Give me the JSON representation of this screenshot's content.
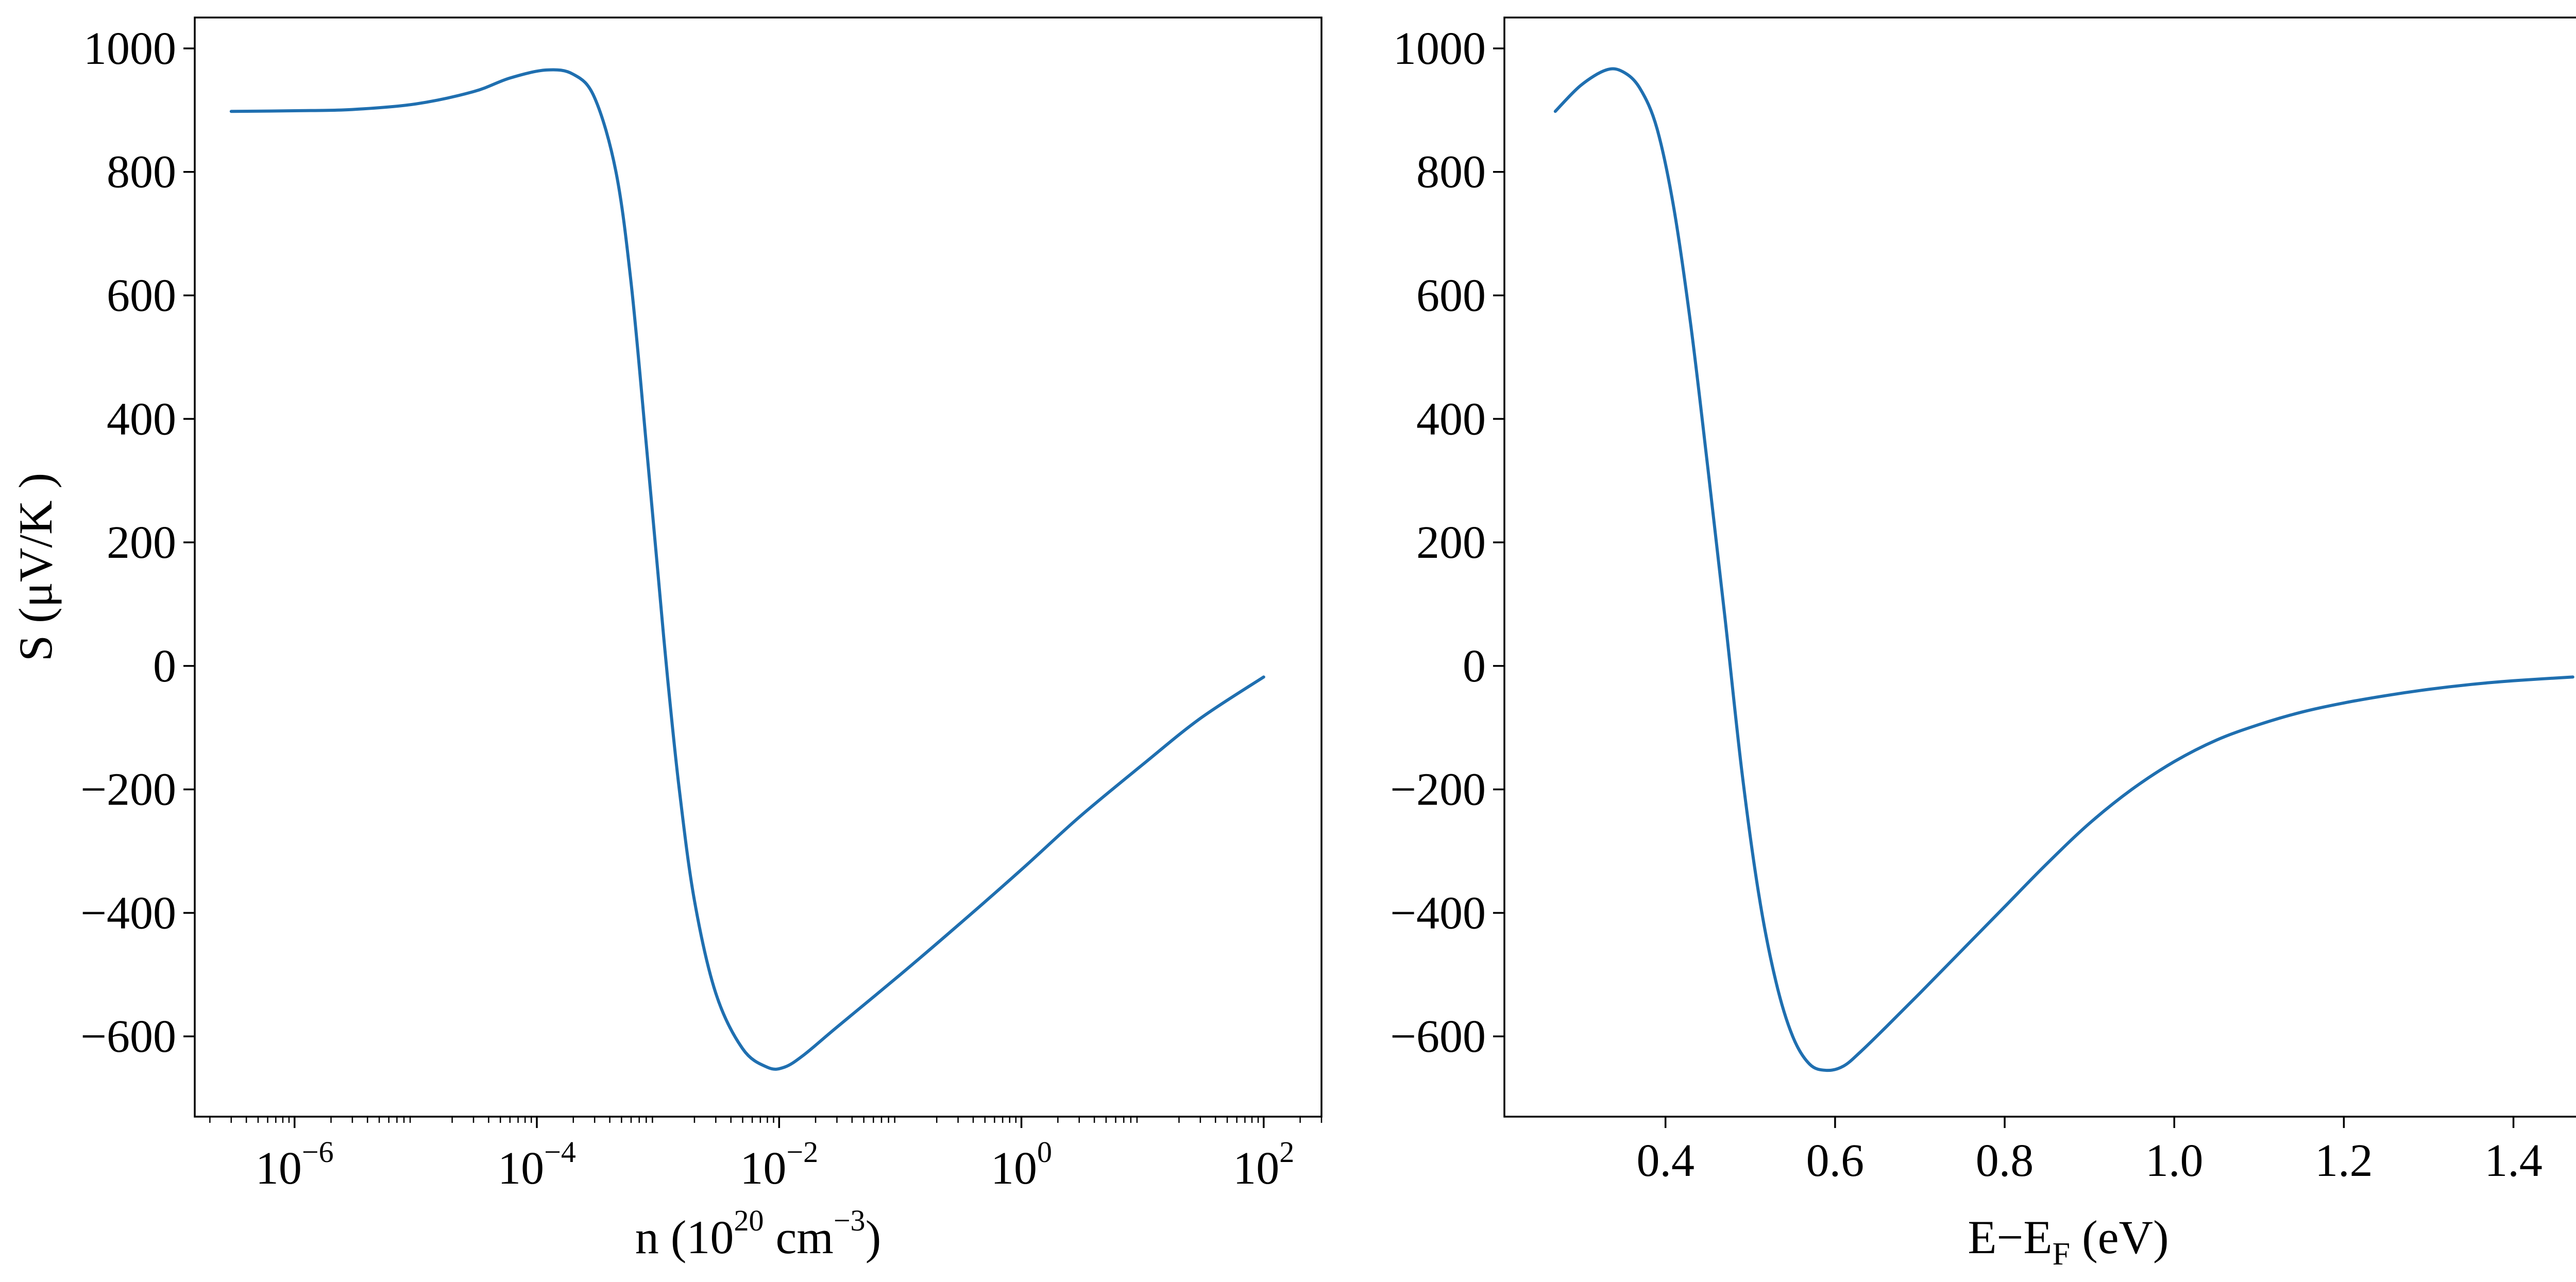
{
  "colors": {
    "series": "#1f6fb0"
  },
  "chart_data": [
    {
      "type": "line",
      "xscale": "log",
      "xlim": [
        1.5e-07,
        300
      ],
      "ylim": [
        -730,
        1050
      ],
      "xticks": [
        1e-06,
        0.0001,
        0.01,
        1,
        100
      ],
      "xtick_labels": [
        {
          "base": "10",
          "exp": "−6"
        },
        {
          "base": "10",
          "exp": "−4"
        },
        {
          "base": "10",
          "exp": "−2"
        },
        {
          "base": "10",
          "exp": "0"
        },
        {
          "base": "10",
          "exp": "2"
        }
      ],
      "yticks": [
        1000,
        800,
        600,
        400,
        200,
        0,
        -200,
        -400,
        -600
      ],
      "ytick_labels": [
        "1000",
        "800",
        "600",
        "400",
        "200",
        "0",
        "−200",
        "−400",
        "−600"
      ],
      "xlabel": {
        "pre": "n (10",
        "sup1": "20",
        "mid": " cm",
        "sup2": "−3",
        "post": ")"
      },
      "ylabel": "S (μV/K )",
      "grid": false,
      "series": [
        {
          "x": [
            3e-07,
            1e-06,
            3e-06,
            1e-05,
            3e-05,
            6e-05,
            0.00012,
            0.0002,
            0.0003,
            0.00045,
            0.0006,
            0.0008,
            0.001,
            0.0012,
            0.0015,
            0.002,
            0.003,
            0.005,
            0.008,
            0.011,
            0.016,
            0.03,
            0.1,
            0.3,
            1,
            3,
            10,
            30,
            100
          ],
          "y": [
            898,
            899,
            901,
            910,
            930,
            952,
            965,
            958,
            920,
            800,
            620,
            360,
            150,
            -20,
            -200,
            -380,
            -530,
            -620,
            -650,
            -650,
            -630,
            -585,
            -500,
            -420,
            -330,
            -245,
            -160,
            -85,
            -18
          ]
        }
      ]
    },
    {
      "type": "line",
      "xlim": [
        0.21,
        1.54
      ],
      "ylim": [
        -730,
        1050
      ],
      "xticks": [
        0.4,
        0.6,
        0.8,
        1.0,
        1.2,
        1.4
      ],
      "xtick_labels": [
        "0.4",
        "0.6",
        "0.8",
        "1.0",
        "1.2",
        "1.4"
      ],
      "yticks": [
        1000,
        800,
        600,
        400,
        200,
        0,
        -200,
        -400,
        -600
      ],
      "ytick_labels": [
        "1000",
        "800",
        "600",
        "400",
        "200",
        "0",
        "−200",
        "−400",
        "−600"
      ],
      "xlabel": {
        "pre": "E−E",
        "sub": "F",
        "post": " (eV)"
      },
      "grid": false,
      "series": [
        {
          "x": [
            0.27,
            0.3,
            0.33,
            0.35,
            0.37,
            0.39,
            0.41,
            0.43,
            0.45,
            0.47,
            0.49,
            0.51,
            0.53,
            0.55,
            0.57,
            0.59,
            0.61,
            0.63,
            0.66,
            0.7,
            0.75,
            0.8,
            0.85,
            0.9,
            0.95,
            1.0,
            1.05,
            1.1,
            1.15,
            1.2,
            1.25,
            1.3,
            1.35,
            1.4,
            1.47
          ],
          "y": [
            898,
            940,
            965,
            962,
            935,
            870,
            740,
            550,
            320,
            80,
            -170,
            -370,
            -510,
            -600,
            -645,
            -655,
            -648,
            -625,
            -585,
            -530,
            -460,
            -390,
            -320,
            -255,
            -200,
            -155,
            -120,
            -95,
            -75,
            -60,
            -48,
            -38,
            -30,
            -24,
            -18
          ]
        }
      ]
    }
  ]
}
